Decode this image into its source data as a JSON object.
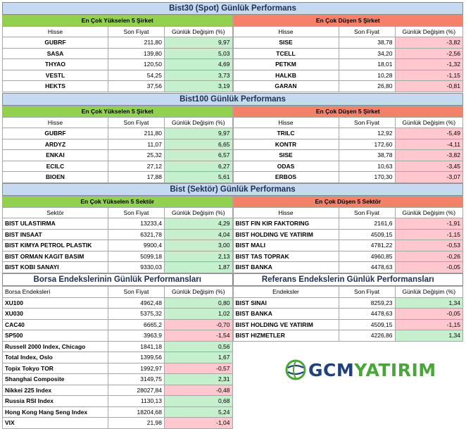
{
  "bist30": {
    "title": "Bist30 (Spot) Günlük Performans",
    "up_header": "En Çok Yükselen 5 Şirket",
    "down_header": "En Çok Düşen 5 Şirket",
    "col_name": "Hisse",
    "col_price": "Son Fiyat",
    "col_change": "Günlük Değişim (%)",
    "up": [
      {
        "name": "GUBRF",
        "price": "211,80",
        "change": "9,97"
      },
      {
        "name": "SASA",
        "price": "139,80",
        "change": "5,03"
      },
      {
        "name": "THYAO",
        "price": "120,50",
        "change": "4,69"
      },
      {
        "name": "VESTL",
        "price": "54,25",
        "change": "3,73"
      },
      {
        "name": "HEKTS",
        "price": "37,56",
        "change": "3,19"
      }
    ],
    "down": [
      {
        "name": "SISE",
        "price": "38,78",
        "change": "-3,82"
      },
      {
        "name": "TCELL",
        "price": "34,20",
        "change": "-2,56"
      },
      {
        "name": "PETKM",
        "price": "18,01",
        "change": "-1,32"
      },
      {
        "name": "HALKB",
        "price": "10,28",
        "change": "-1,15"
      },
      {
        "name": "GARAN",
        "price": "26,80",
        "change": "-0,81"
      }
    ]
  },
  "bist100": {
    "title": "Bist100 Günlük Performans",
    "up_header": "En Çok Yükselen 5 Şirket",
    "down_header": "En Çok Düşen 5 Şirket",
    "col_name": "Hisse",
    "col_price": "Son Fiyat",
    "col_change": "Günlük Değişim (%)",
    "up": [
      {
        "name": "GUBRF",
        "price": "211,80",
        "change": "9,97"
      },
      {
        "name": "ARDYZ",
        "price": "11,07",
        "change": "6,65"
      },
      {
        "name": "ENKAI",
        "price": "25,32",
        "change": "6,57"
      },
      {
        "name": "ECILC",
        "price": "27,12",
        "change": "6,27"
      },
      {
        "name": "BIOEN",
        "price": "17,88",
        "change": "5,61"
      }
    ],
    "down": [
      {
        "name": "TRILC",
        "price": "12,92",
        "change": "-5,49"
      },
      {
        "name": "KONTR",
        "price": "172,60",
        "change": "-4,11"
      },
      {
        "name": "SISE",
        "price": "38,78",
        "change": "-3,82"
      },
      {
        "name": "ODAS",
        "price": "10,63",
        "change": "-3,45"
      },
      {
        "name": "ERBOS",
        "price": "170,30",
        "change": "-3,07"
      }
    ]
  },
  "sector": {
    "title": "Bist (Sektör) Günlük Performans",
    "up_header": "En Çok Yükselen 5 Sektör",
    "down_header": "En Çok Düşen 5 Sektör",
    "col_name_up": "Sektör",
    "col_name_down": "Hisse",
    "col_price": "Son Fiyat",
    "col_change": "Günlük Değişim (%)",
    "up": [
      {
        "name": "BIST ULASTIRMA",
        "price": "13233,4",
        "change": "4,29"
      },
      {
        "name": "BIST INSAAT",
        "price": "6321,78",
        "change": "4,04"
      },
      {
        "name": "BIST KIMYA PETROL PLASTIK",
        "price": "9900,4",
        "change": "3,00"
      },
      {
        "name": "BIST ORMAN KAGIT BASIM",
        "price": "5099,18",
        "change": "2,13"
      },
      {
        "name": "BIST KOBI SANAYI",
        "price": "9330,03",
        "change": "1,87"
      }
    ],
    "down": [
      {
        "name": "BIST FIN KIR FAKTORING",
        "price": "2161,6",
        "change": "-1,91"
      },
      {
        "name": "BIST HOLDING VE YATIRIM",
        "price": "4509,15",
        "change": "-1,15"
      },
      {
        "name": "BIST MALI",
        "price": "4781,22",
        "change": "-0,53"
      },
      {
        "name": "BIST TAS TOPRAK",
        "price": "4960,85",
        "change": "-0,26"
      },
      {
        "name": "BIST BANKA",
        "price": "4478,63",
        "change": "-0,05"
      }
    ]
  },
  "borsa": {
    "title": "Borsa Endekslerinin Günlük Performansları",
    "col_name": "Borsa Endeksleri",
    "col_price": "Son Fiyat",
    "col_change": "Günlük Değişim (%)",
    "rows": [
      {
        "name": "XU100",
        "price": "4962,48",
        "change": "0,80"
      },
      {
        "name": "XU030",
        "price": "5375,32",
        "change": "1,02"
      },
      {
        "name": "CAC40",
        "price": "6665,2",
        "change": "-0,70"
      },
      {
        "name": "SP500",
        "price": "3963,9",
        "change": "-1,54"
      },
      {
        "name": "Russell 2000 Index, Chicago",
        "price": "1841,18",
        "change": "0,56"
      },
      {
        "name": "Total Index, Oslo",
        "price": "1399,56",
        "change": "1,67"
      },
      {
        "name": "Topix Tokyo TOR",
        "price": "1992,97",
        "change": "-0,57"
      },
      {
        "name": "Shanghai Composite",
        "price": "3149,75",
        "change": "2,31"
      },
      {
        "name": "Nikkei 225 Index",
        "price": "28027,84",
        "change": "-0,48"
      },
      {
        "name": "Russia RSI Index",
        "price": "1130,13",
        "change": "0,68"
      },
      {
        "name": "Hong Kong Hang Seng Index",
        "price": "18204,68",
        "change": "5,24"
      },
      {
        "name": "VIX",
        "price": "21,98",
        "change": "-1,04"
      }
    ]
  },
  "referans": {
    "title": "Referans Endekslerin  Günlük Performansları",
    "col_name": "Endeksler",
    "col_price": "Son Fiyat",
    "col_change": "Günlük Değişim (%)",
    "rows": [
      {
        "name": "BIST SINAI",
        "price": "8259,23",
        "change": "1,34"
      },
      {
        "name": "BIST BANKA",
        "price": "4478,63",
        "change": "-0,05"
      },
      {
        "name": "BIST HOLDING VE YATIRIM",
        "price": "4509,15",
        "change": "-1,15"
      },
      {
        "name": "BIST HIZMETLER",
        "price": "4226,86",
        "change": "1,34"
      }
    ]
  },
  "logo": {
    "icon": "gcm-globe-icon",
    "part1": "GCM",
    "part2": "YATIRIM",
    "color1": "#20417a",
    "color2": "#4aa53b"
  },
  "colors": {
    "banner": "#c5d9f1",
    "up_header": "#92d050",
    "down_header": "#f4826b",
    "positive_cell": "#c6efce",
    "negative_cell": "#ffc7ce"
  }
}
